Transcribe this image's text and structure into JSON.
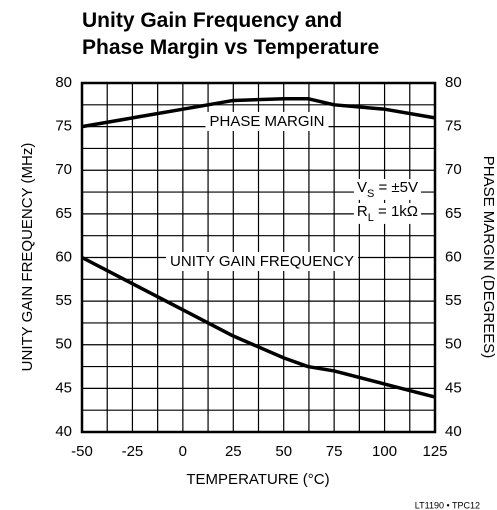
{
  "chart_data": {
    "type": "line",
    "title": [
      "Unity Gain Frequency and",
      "Phase Margin vs Temperature"
    ],
    "x_label": "TEMPERATURE (°C)",
    "y_label": "UNITY GAIN FREQUENCY (MHz)",
    "y2_label": "PHASE MARGIN (DEGREES)",
    "footer": "LT1190 • TPC12",
    "conditions": [
      {
        "main": "V",
        "sub": "S",
        "rest": " = ±5V"
      },
      {
        "main": "R",
        "sub": "L",
        "rest": " = 1kΩ"
      }
    ],
    "x": [
      -50,
      -25,
      0,
      25,
      50,
      62,
      75,
      100,
      125
    ],
    "series": [
      {
        "name": "UNITY GAIN FREQUENCY",
        "color": "#000000",
        "values": [
          60,
          57,
          54,
          51,
          48.5,
          47.5,
          47,
          45.5,
          44
        ]
      },
      {
        "name": "PHASE MARGIN",
        "color": "#000000",
        "axis": "y2",
        "values": [
          75,
          76,
          77,
          78,
          78.2,
          78.2,
          77.5,
          77,
          76
        ]
      }
    ],
    "xlim": [
      -50,
      125
    ],
    "xticks": [
      -50,
      -25,
      0,
      25,
      50,
      75,
      100,
      125
    ],
    "ylim": [
      40,
      80
    ],
    "yticks": [
      40,
      45,
      50,
      55,
      60,
      65,
      70,
      75,
      80
    ],
    "y2lim": [
      40,
      80
    ],
    "y2ticks": [
      40,
      45,
      50,
      55,
      60,
      65,
      70,
      75,
      80
    ],
    "grid": true
  }
}
